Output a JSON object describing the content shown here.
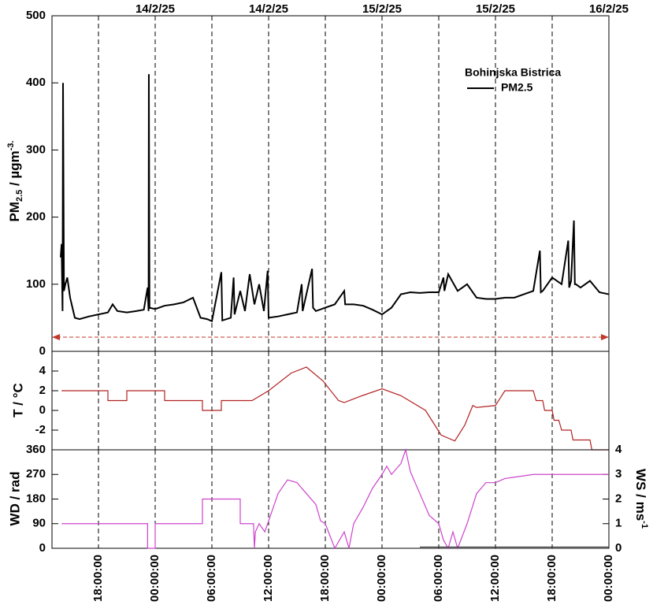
{
  "chart_data": [
    {
      "type": "line",
      "legend_title": "Bohinjska Bistrica",
      "ylabel": {
        "main": "PM",
        "sub": "2.5",
        "rest": " / µgm",
        "sup": "-3."
      },
      "ylim": [
        0,
        500
      ],
      "yticks": [
        0,
        100,
        200,
        300,
        400,
        500
      ],
      "x2ticks": [
        {
          "value": 0,
          "label": "14/2/25"
        },
        {
          "value": 12,
          "label": "14/2/25"
        },
        {
          "value": 24,
          "label": "15/2/25"
        },
        {
          "value": 36,
          "label": "15/2/25"
        },
        {
          "value": 48,
          "label": "16/2/25"
        }
      ],
      "series": [
        {
          "name": "PM2.5",
          "color": "#000000",
          "x": [
            -10,
            -9.9,
            -9.8,
            -9.75,
            -9.65,
            -9.5,
            -9.3,
            -9,
            -8.5,
            -8,
            -7,
            -6,
            -5,
            -4.5,
            -4,
            -3,
            -2,
            -1.2,
            -0.8,
            -0.7,
            -0.67,
            -0.6,
            0,
            1,
            2,
            3,
            4,
            4.8,
            5.5,
            6,
            7,
            7.1,
            8,
            8.3,
            8.4,
            9,
            9.5,
            10,
            10.5,
            11,
            11.5,
            11.9,
            12,
            13,
            14,
            15,
            15.5,
            15.6,
            16.6,
            16.7,
            17,
            18,
            19,
            20,
            20.1,
            21,
            22,
            23,
            24,
            25,
            26,
            27,
            28,
            29,
            30,
            30.5,
            30.6,
            31,
            32,
            33,
            34,
            35,
            36,
            37,
            38,
            39,
            40,
            40.7,
            40.8,
            41,
            42,
            43,
            43.7,
            43.8,
            44,
            44.3,
            44.4,
            44.5,
            45,
            46,
            47,
            48
          ],
          "values": [
            140,
            160,
            60,
            400,
            90,
            100,
            110,
            80,
            50,
            48,
            52,
            55,
            58,
            70,
            60,
            58,
            60,
            62,
            95,
            60,
            413,
            65,
            63,
            68,
            70,
            73,
            80,
            50,
            48,
            45,
            118,
            46,
            50,
            110,
            55,
            90,
            60,
            115,
            70,
            100,
            60,
            120,
            50,
            52,
            55,
            58,
            100,
            60,
            123,
            65,
            60,
            65,
            70,
            90,
            70,
            70,
            68,
            62,
            55,
            65,
            85,
            88,
            87,
            88,
            88,
            110,
            90,
            115,
            90,
            100,
            80,
            78,
            78,
            80,
            80,
            85,
            90,
            150,
            88,
            90,
            110,
            100,
            165,
            95,
            105,
            195,
            100,
            100,
            95,
            105,
            88,
            85
          ]
        }
      ]
    },
    {
      "type": "line",
      "ylabel": "T / °C",
      "ylim": [
        -4,
        6
      ],
      "yticks": [
        -2,
        0,
        2,
        4
      ],
      "series": [
        {
          "name": "T",
          "color": "#b22222",
          "x": [
            -9.9,
            -5,
            -5,
            -3,
            -3,
            1,
            1,
            5,
            5,
            7,
            7,
            10.25,
            12,
            14.4,
            16,
            17.75,
            19.4,
            20,
            21.9,
            24,
            26,
            28.6,
            30.25,
            31.7,
            32.75,
            33.6,
            34,
            36,
            37,
            40,
            40.3,
            41,
            41.2,
            42,
            42.2,
            42.7,
            43,
            44,
            44.2,
            46,
            46.2,
            48
          ],
          "values": [
            2,
            2,
            1,
            1,
            2,
            2,
            1,
            1,
            0,
            0,
            1,
            1,
            2,
            3.8,
            4.4,
            3,
            1,
            0.8,
            1.5,
            2.2,
            1.5,
            0,
            -2.5,
            -3.1,
            -1.5,
            0.5,
            0.3,
            0.5,
            2,
            2,
            1,
            1,
            0,
            0,
            -1,
            -1,
            -2,
            -2,
            -3,
            -3,
            -4,
            -4
          ]
        }
      ]
    },
    {
      "type": "line",
      "ylabel": "WD / rad",
      "y2label": {
        "main": "WS / ms",
        "sup": "-1"
      },
      "ylim": [
        0,
        360
      ],
      "yticks": [
        0,
        90,
        180,
        270,
        360
      ],
      "y2lim": [
        0,
        4
      ],
      "y2ticks": [
        0,
        1,
        2,
        3,
        4
      ],
      "xlim": [
        -10.917,
        48
      ],
      "xticks": [
        {
          "value": -6,
          "label": "18:00:00"
        },
        {
          "value": 0,
          "label": "00:00:00"
        },
        {
          "value": 6,
          "label": "06:00:00"
        },
        {
          "value": 12,
          "label": "12:00:00"
        },
        {
          "value": 18,
          "label": "18:00:00"
        },
        {
          "value": 24,
          "label": "00:00:00"
        },
        {
          "value": 30,
          "label": "06:00:00"
        },
        {
          "value": 36,
          "label": "12:00:00"
        },
        {
          "value": 42,
          "label": "18:00:00"
        },
        {
          "value": 48,
          "label": "00:00:00"
        }
      ],
      "series": [
        {
          "name": "WD",
          "color": "#cc44cc",
          "x": [
            -9.9,
            -0.8,
            -0.8,
            0,
            0,
            5,
            5,
            9,
            9,
            10.4,
            10.5,
            10.6,
            11,
            11.6,
            12,
            13,
            14,
            15,
            16,
            17,
            17.5,
            18,
            19,
            20,
            20.5,
            21,
            22,
            23,
            24,
            24.5,
            25,
            26,
            26.5,
            27,
            28,
            29,
            30,
            30.5,
            31,
            31.5,
            32,
            33,
            34,
            35,
            36,
            37,
            38,
            40,
            48
          ],
          "values": [
            90,
            90,
            0,
            0,
            90,
            90,
            180,
            180,
            90,
            90,
            0,
            60,
            90,
            60,
            100,
            200,
            250,
            240,
            200,
            160,
            100,
            90,
            0,
            60,
            0,
            90,
            150,
            220,
            270,
            300,
            270,
            310,
            360,
            280,
            200,
            120,
            90,
            30,
            0,
            60,
            0,
            90,
            200,
            240,
            240,
            255,
            260,
            270,
            270
          ]
        },
        {
          "name": "WS",
          "color": "#333333",
          "axis": "y2",
          "x": [
            28,
            48
          ],
          "values": [
            0.05,
            0.05
          ]
        }
      ]
    }
  ]
}
